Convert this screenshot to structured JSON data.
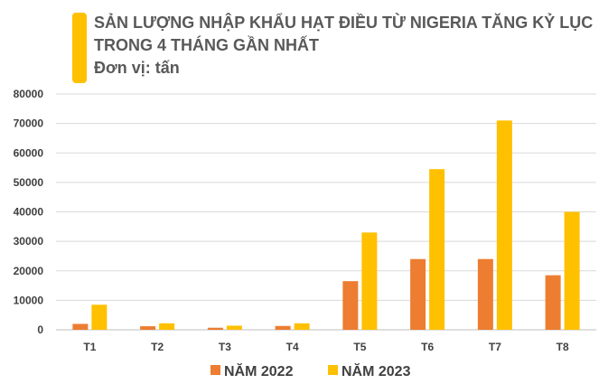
{
  "chart_data": {
    "type": "bar",
    "title_lines": [
      "SẢN LƯỢNG NHẬP KHẨU HẠT ĐIỀU TỪ NIGERIA TĂNG KỶ LỤC",
      "TRONG 4 THÁNG GẦN NHẤT"
    ],
    "unit_label": "Đơn vị: tấn",
    "categories": [
      "T1",
      "T2",
      "T3",
      "T4",
      "T5",
      "T6",
      "T7",
      "T8"
    ],
    "series": [
      {
        "name": "NĂM 2022",
        "color": "#ED7D31",
        "values": [
          2000,
          1200,
          700,
          1300,
          16500,
          24000,
          24000,
          18500
        ]
      },
      {
        "name": "NĂM 2023",
        "color": "#FFC000",
        "values": [
          8500,
          2200,
          1400,
          2200,
          33000,
          54500,
          71000,
          40000
        ]
      }
    ],
    "ylim": [
      0,
      80000
    ],
    "yticks": [
      "0",
      "10000",
      "20000",
      "30000",
      "40000",
      "50000",
      "60000",
      "70000",
      "80000"
    ],
    "grid": true,
    "legend_position": "bottom",
    "title_accent_color": "#FFC000"
  }
}
